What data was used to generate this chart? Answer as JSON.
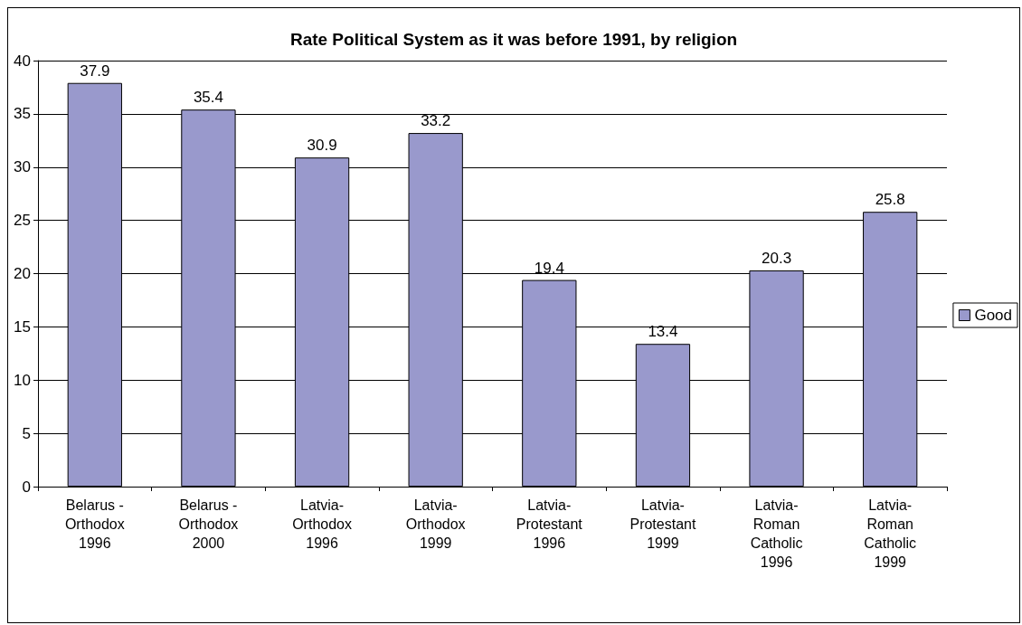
{
  "chart_data": {
    "type": "bar",
    "title": "Rate Political System as it was before 1991, by religion",
    "categories": [
      "Belarus -\nOrthodox\n1996",
      "Belarus -\nOrthodox\n2000",
      "Latvia-\nOrthodox\n1996",
      "Latvia-\nOrthodox\n1999",
      "Latvia-\nProtestant\n1996",
      "Latvia-\nProtestant\n1999",
      "Latvia-\nRoman\nCatholic\n1996",
      "Latvia-\nRoman\nCatholic\n1999"
    ],
    "series": [
      {
        "name": "Good",
        "color": "#9999cc",
        "values": [
          37.9,
          35.4,
          30.9,
          33.2,
          19.4,
          13.4,
          20.3,
          25.8
        ]
      }
    ],
    "ylim": [
      0,
      40
    ],
    "yticks": [
      0,
      5,
      10,
      15,
      20,
      25,
      30,
      35,
      40
    ],
    "grid": "y",
    "legend": "right",
    "data_labels": true
  }
}
